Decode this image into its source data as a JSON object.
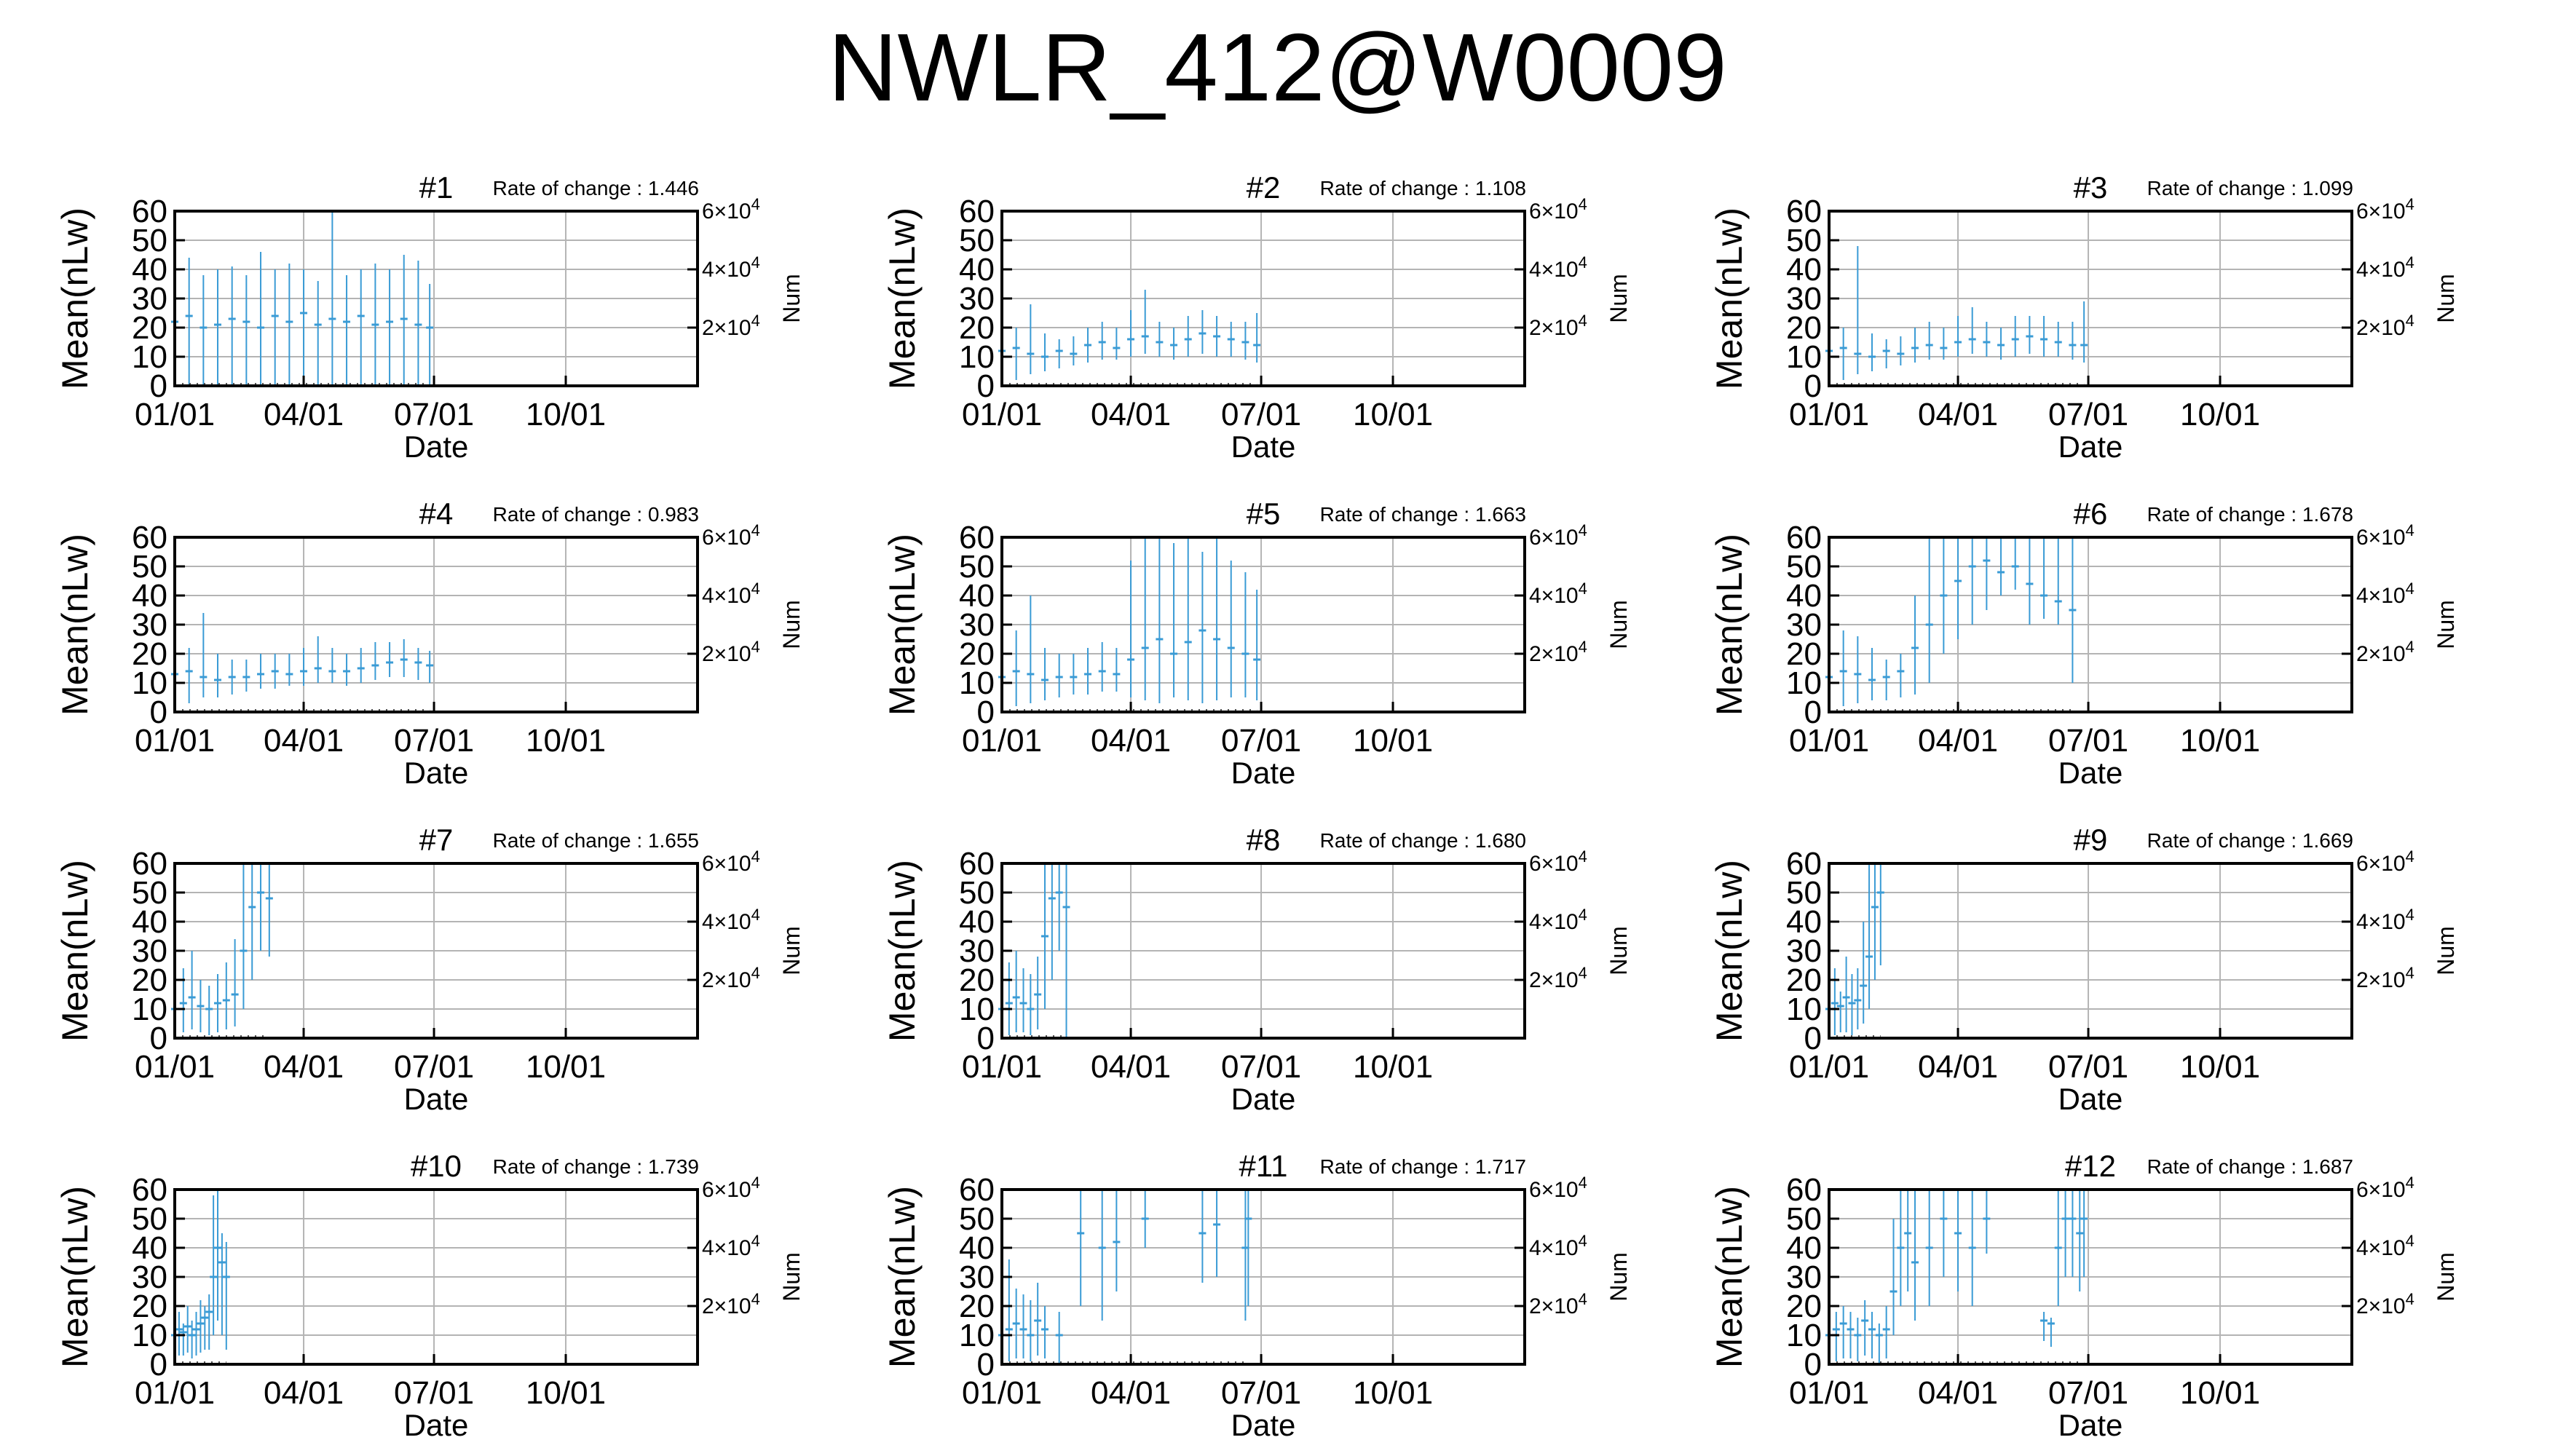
{
  "title": "NWLR_412@W0009",
  "colors": {
    "data": "#3a9bd5",
    "grid": "#b4b4b4",
    "axis": "#000000"
  },
  "axes": {
    "y_label": "Mean(nLw)",
    "y2_label": "Num",
    "x_label": "Date",
    "y_ticks": [
      "0",
      "10",
      "20",
      "30",
      "40",
      "50",
      "60"
    ],
    "y2_ticks": [
      {
        "value": 20000,
        "base": "2×10",
        "exp": "4"
      },
      {
        "value": 40000,
        "base": "4×10",
        "exp": "4"
      },
      {
        "value": 60000,
        "base": "6×10",
        "exp": "4"
      }
    ],
    "x_ticks": [
      "01/01",
      "04/01",
      "07/01",
      "10/01"
    ],
    "x_tick_doy": [
      0,
      90,
      181,
      273
    ],
    "x_range_days": [
      0,
      365
    ],
    "y_range": [
      0,
      60
    ],
    "y2_range": [
      0,
      60000
    ],
    "rate_prefix": "Rate of change : "
  },
  "chart_data": [
    {
      "type": "line",
      "panel": "#1",
      "rate": "1.446",
      "grid": true,
      "series": [
        {
          "x_doy": [
            0,
            10,
            20,
            30,
            40,
            50,
            60,
            70,
            80,
            90,
            100,
            110,
            120,
            130,
            140,
            150,
            160,
            170,
            178
          ],
          "y": [
            22,
            24,
            20,
            21,
            23,
            22,
            20,
            24,
            22,
            25,
            21,
            23,
            22,
            24,
            21,
            22,
            23,
            21,
            20
          ],
          "y_low": [
            0,
            0,
            0,
            0,
            0,
            0,
            0,
            0,
            0,
            0,
            0,
            0,
            0,
            0,
            0,
            0,
            0,
            0,
            0
          ],
          "y_high": [
            40,
            44,
            38,
            40,
            41,
            38,
            46,
            40,
            42,
            40,
            36,
            60,
            38,
            40,
            42,
            40,
            45,
            43,
            35
          ]
        }
      ]
    },
    {
      "type": "line",
      "panel": "#2",
      "rate": "1.108",
      "grid": true,
      "series": [
        {
          "x_doy": [
            0,
            10,
            20,
            30,
            40,
            50,
            60,
            70,
            80,
            90,
            100,
            110,
            120,
            130,
            140,
            150,
            160,
            170,
            178
          ],
          "y": [
            12,
            13,
            11,
            10,
            12,
            11,
            14,
            15,
            13,
            16,
            17,
            15,
            14,
            16,
            18,
            17,
            16,
            15,
            14
          ],
          "y_low": [
            0,
            2,
            4,
            5,
            6,
            7,
            8,
            9,
            9,
            10,
            11,
            10,
            9,
            10,
            11,
            10,
            10,
            9,
            8
          ],
          "y_high": [
            28,
            20,
            28,
            18,
            16,
            17,
            20,
            22,
            20,
            26,
            33,
            22,
            20,
            24,
            26,
            24,
            22,
            22,
            25
          ]
        }
      ]
    },
    {
      "type": "line",
      "panel": "#3",
      "rate": "1.099",
      "grid": true,
      "series": [
        {
          "x_doy": [
            0,
            10,
            20,
            30,
            40,
            50,
            60,
            70,
            80,
            90,
            100,
            110,
            120,
            130,
            140,
            150,
            160,
            170,
            178
          ],
          "y": [
            12,
            13,
            11,
            10,
            12,
            11,
            13,
            14,
            13,
            15,
            16,
            15,
            14,
            16,
            17,
            16,
            15,
            14,
            14
          ],
          "y_low": [
            0,
            2,
            4,
            5,
            6,
            7,
            8,
            9,
            9,
            10,
            11,
            10,
            9,
            10,
            11,
            10,
            10,
            9,
            8
          ],
          "y_high": [
            30,
            20,
            48,
            18,
            16,
            17,
            20,
            22,
            20,
            24,
            27,
            22,
            20,
            24,
            24,
            24,
            22,
            22,
            29
          ]
        }
      ]
    },
    {
      "type": "line",
      "panel": "#4",
      "rate": "0.983",
      "grid": true,
      "series": [
        {
          "x_doy": [
            0,
            10,
            20,
            30,
            40,
            50,
            60,
            70,
            80,
            90,
            100,
            110,
            120,
            130,
            140,
            150,
            160,
            170,
            178
          ],
          "y": [
            13,
            14,
            12,
            11,
            12,
            12,
            13,
            14,
            13,
            14,
            15,
            14,
            14,
            15,
            16,
            17,
            18,
            17,
            16
          ],
          "y_low": [
            0,
            3,
            5,
            5,
            6,
            7,
            8,
            8,
            9,
            9,
            10,
            10,
            9,
            10,
            11,
            12,
            12,
            11,
            10
          ],
          "y_high": [
            25,
            22,
            34,
            20,
            18,
            18,
            20,
            20,
            20,
            22,
            26,
            22,
            20,
            22,
            24,
            24,
            25,
            22,
            21
          ]
        }
      ]
    },
    {
      "type": "line",
      "panel": "#5",
      "rate": "1.663",
      "grid": true,
      "series": [
        {
          "x_doy": [
            0,
            10,
            20,
            30,
            40,
            50,
            60,
            70,
            80,
            90,
            100,
            110,
            120,
            130,
            140,
            150,
            160,
            170,
            178
          ],
          "y": [
            12,
            14,
            13,
            11,
            12,
            12,
            13,
            14,
            13,
            18,
            22,
            25,
            20,
            24,
            28,
            25,
            22,
            20,
            18
          ],
          "y_low": [
            0,
            2,
            3,
            4,
            5,
            6,
            6,
            7,
            7,
            5,
            4,
            3,
            5,
            4,
            3,
            4,
            5,
            5,
            4
          ],
          "y_high": [
            60,
            28,
            40,
            22,
            20,
            20,
            22,
            24,
            22,
            52,
            60,
            60,
            58,
            60,
            55,
            60,
            52,
            48,
            42
          ]
        }
      ]
    },
    {
      "type": "line",
      "panel": "#6",
      "rate": "1.678",
      "grid": true,
      "series": [
        {
          "x_doy": [
            0,
            10,
            20,
            30,
            40,
            50,
            60,
            70,
            80,
            90,
            100,
            110,
            120,
            130,
            140,
            150,
            160,
            170
          ],
          "y": [
            12,
            14,
            13,
            11,
            12,
            14,
            22,
            30,
            40,
            45,
            50,
            52,
            48,
            50,
            44,
            40,
            38,
            35
          ],
          "y_low": [
            0,
            2,
            3,
            4,
            4,
            5,
            6,
            10,
            20,
            25,
            30,
            35,
            40,
            42,
            30,
            32,
            30,
            10
          ],
          "y_high": [
            30,
            28,
            26,
            22,
            18,
            20,
            40,
            60,
            60,
            60,
            60,
            60,
            60,
            60,
            60,
            60,
            60,
            60
          ]
        }
      ]
    },
    {
      "type": "line",
      "panel": "#7",
      "rate": "1.655",
      "grid": true,
      "series": [
        {
          "x_doy": [
            0,
            6,
            12,
            18,
            24,
            30,
            36,
            42,
            48,
            54,
            60,
            66
          ],
          "y": [
            10,
            12,
            14,
            11,
            10,
            12,
            13,
            15,
            30,
            45,
            50,
            48
          ],
          "y_low": [
            0,
            2,
            3,
            2,
            1,
            2,
            3,
            4,
            10,
            20,
            30,
            28
          ],
          "y_high": [
            20,
            24,
            30,
            20,
            18,
            22,
            26,
            34,
            60,
            60,
            60,
            60
          ]
        }
      ]
    },
    {
      "type": "line",
      "panel": "#8",
      "rate": "1.680",
      "grid": true,
      "series": [
        {
          "x_doy": [
            0,
            5,
            10,
            15,
            20,
            25,
            30,
            35,
            40,
            45
          ],
          "y": [
            10,
            12,
            14,
            12,
            10,
            15,
            35,
            48,
            50,
            45
          ],
          "y_low": [
            0,
            1,
            2,
            2,
            1,
            3,
            10,
            20,
            30,
            0
          ],
          "y_high": [
            20,
            26,
            30,
            24,
            22,
            28,
            60,
            60,
            60,
            60
          ]
        }
      ]
    },
    {
      "type": "line",
      "panel": "#9",
      "rate": "1.669",
      "grid": true,
      "series": [
        {
          "x_doy": [
            0,
            4,
            8,
            12,
            16,
            20,
            24,
            28,
            32,
            36
          ],
          "y": [
            10,
            12,
            11,
            14,
            12,
            13,
            18,
            28,
            45,
            50
          ],
          "y_low": [
            0,
            1,
            2,
            2,
            1,
            3,
            5,
            10,
            20,
            25
          ],
          "y_high": [
            20,
            24,
            16,
            28,
            22,
            24,
            40,
            60,
            60,
            60
          ]
        }
      ]
    },
    {
      "type": "line",
      "panel": "#10",
      "rate": "1.739",
      "grid": true,
      "series": [
        {
          "x_doy": [
            0,
            3,
            6,
            9,
            12,
            15,
            18,
            21,
            24,
            27,
            30,
            33,
            36
          ],
          "y": [
            10,
            12,
            11,
            13,
            10,
            12,
            14,
            16,
            18,
            30,
            40,
            35,
            30
          ],
          "y_low": [
            2,
            3,
            3,
            4,
            2,
            3,
            4,
            5,
            5,
            10,
            15,
            10,
            5
          ],
          "y_high": [
            16,
            18,
            14,
            20,
            15,
            18,
            22,
            20,
            24,
            58,
            60,
            45,
            42
          ]
        }
      ]
    },
    {
      "type": "line",
      "panel": "#11",
      "rate": "1.717",
      "grid": true,
      "series": [
        {
          "x_doy": [
            0,
            5,
            10,
            15,
            20,
            25,
            30,
            40,
            55,
            70,
            80,
            100,
            140,
            150,
            170,
            172
          ],
          "y": [
            10,
            12,
            14,
            12,
            10,
            15,
            12,
            10,
            45,
            40,
            42,
            50,
            45,
            48,
            40,
            50
          ],
          "y_low": [
            0,
            1,
            2,
            2,
            1,
            3,
            2,
            0,
            20,
            15,
            25,
            40,
            28,
            30,
            15,
            20
          ],
          "y_high": [
            20,
            36,
            26,
            24,
            22,
            28,
            20,
            18,
            60,
            60,
            60,
            60,
            60,
            60,
            60,
            60
          ]
        }
      ]
    },
    {
      "type": "line",
      "panel": "#12",
      "rate": "1.687",
      "grid": true,
      "series": [
        {
          "x_doy": [
            0,
            5,
            10,
            15,
            20,
            25,
            30,
            35,
            40,
            45,
            50,
            55,
            60,
            70,
            80,
            90,
            100,
            110,
            150,
            155,
            160,
            165,
            170,
            175,
            178
          ],
          "y": [
            10,
            12,
            14,
            12,
            10,
            15,
            12,
            10,
            12,
            25,
            40,
            45,
            35,
            40,
            50,
            45,
            40,
            50,
            15,
            14,
            40,
            50,
            50,
            45,
            50
          ],
          "y_low": [
            0,
            1,
            2,
            2,
            1,
            3,
            2,
            0,
            2,
            10,
            20,
            25,
            15,
            20,
            30,
            25,
            20,
            38,
            8,
            6,
            20,
            30,
            30,
            25,
            30
          ],
          "y_high": [
            16,
            18,
            20,
            18,
            16,
            22,
            18,
            14,
            20,
            50,
            60,
            60,
            60,
            60,
            60,
            60,
            60,
            60,
            18,
            16,
            60,
            60,
            60,
            60,
            60
          ]
        }
      ]
    }
  ]
}
